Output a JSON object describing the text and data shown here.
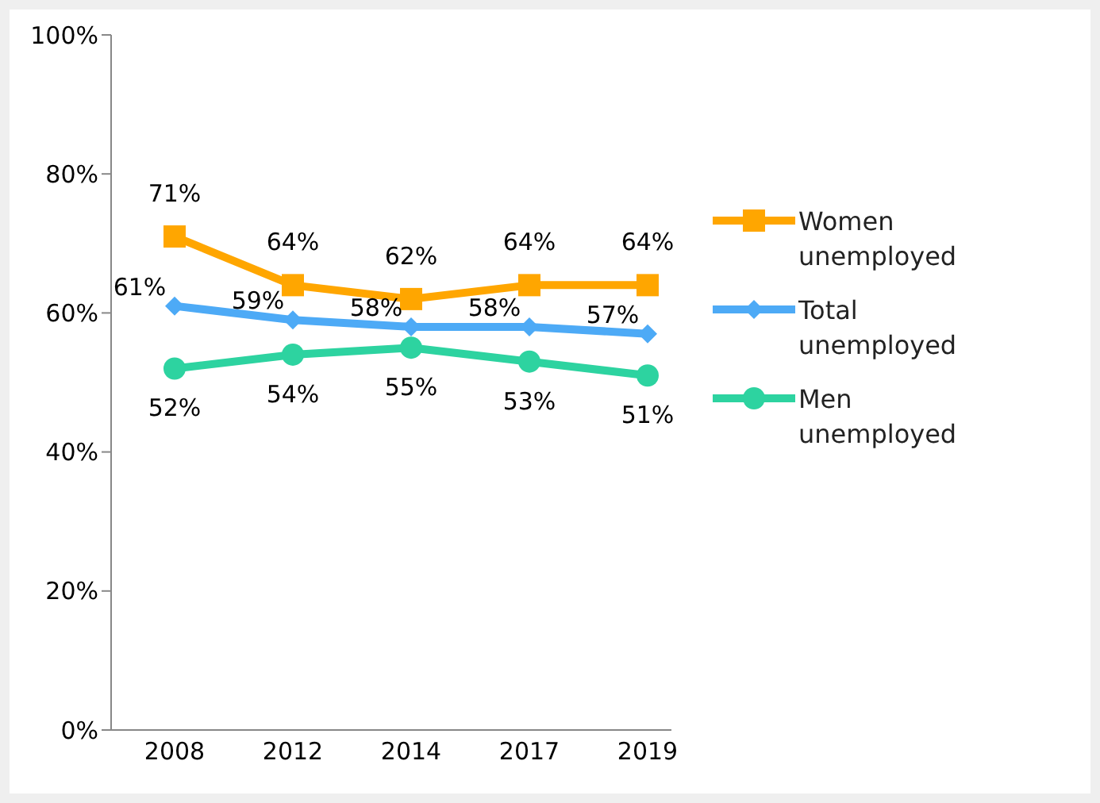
{
  "chart_data": {
    "type": "line",
    "categories": [
      "2008",
      "2012",
      "2014",
      "2017",
      "2019"
    ],
    "series": [
      {
        "name": "Women unemployed",
        "color": "#ffa600",
        "marker": "square",
        "values": [
          71,
          64,
          62,
          64,
          64
        ],
        "value_labels": [
          "71%",
          "64%",
          "62%",
          "64%",
          "64%"
        ]
      },
      {
        "name": "Total unemployed",
        "color": "#4daaf6",
        "marker": "diamond",
        "values": [
          61,
          59,
          58,
          58,
          57
        ],
        "value_labels": [
          "61%",
          "59%",
          "58%",
          "58%",
          "57%"
        ]
      },
      {
        "name": "Men unemployed",
        "color": "#2dd3a0",
        "marker": "circle",
        "values": [
          52,
          54,
          55,
          53,
          51
        ],
        "value_labels": [
          "52%",
          "54%",
          "55%",
          "53%",
          "51%"
        ]
      }
    ],
    "ylim": [
      0,
      100
    ],
    "yticks": [
      {
        "value": 0,
        "label": "0%"
      },
      {
        "value": 20,
        "label": "20%"
      },
      {
        "value": 40,
        "label": "40%"
      },
      {
        "value": 60,
        "label": "60%"
      },
      {
        "value": 80,
        "label": "80%"
      },
      {
        "value": 100,
        "label": "100%"
      }
    ],
    "legend": "right",
    "grid": false
  }
}
